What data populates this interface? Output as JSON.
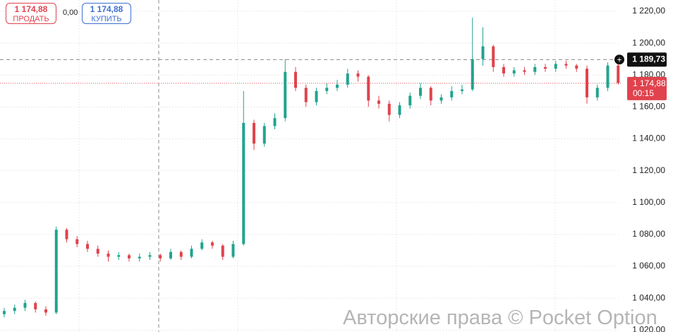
{
  "chart_data": {
    "type": "candlestick",
    "open": [
      1030,
      1032,
      1034,
      1037,
      1033,
      1031,
      1083,
      1077,
      1074,
      1071,
      1068,
      1066,
      1067,
      1065,
      1066,
      1067,
      1065,
      1069,
      1066,
      1071,
      1075,
      1073,
      1066,
      1074,
      1150,
      1137,
      1148,
      1153,
      1182,
      1172,
      1163,
      1170,
      1172,
      1174,
      1181,
      1179,
      1164,
      1162,
      1155,
      1161,
      1167,
      1172,
      1164,
      1166,
      1170,
      1171,
      1190,
      1198,
      1185,
      1181,
      1183,
      1182,
      1185,
      1184,
      1187,
      1186,
      1184,
      1166,
      1172,
      1186
    ],
    "high": [
      1034,
      1036,
      1039,
      1038,
      1035,
      1085,
      1084,
      1079,
      1076,
      1073,
      1070,
      1069,
      1068,
      1068,
      1069,
      1068,
      1071,
      1070,
      1073,
      1077,
      1076,
      1074,
      1076,
      1170,
      1152,
      1150,
      1156,
      1190,
      1185,
      1174,
      1172,
      1175,
      1177,
      1184,
      1183,
      1180,
      1167,
      1164,
      1163,
      1169,
      1175,
      1173,
      1168,
      1173,
      1174,
      1216,
      1210,
      1199,
      1187,
      1185,
      1185,
      1187,
      1187,
      1189,
      1189,
      1187,
      1186,
      1174,
      1188,
      1187
    ],
    "low": [
      1028,
      1030,
      1032,
      1031,
      1029,
      1030,
      1075,
      1072,
      1069,
      1066,
      1063,
      1064,
      1063,
      1063,
      1064,
      1063,
      1064,
      1064,
      1065,
      1070,
      1071,
      1064,
      1065,
      1073,
      1133,
      1135,
      1146,
      1151,
      1170,
      1160,
      1161,
      1168,
      1170,
      1172,
      1176,
      1160,
      1159,
      1151,
      1153,
      1159,
      1165,
      1161,
      1162,
      1164,
      1168,
      1170,
      1186,
      1182,
      1179,
      1179,
      1180,
      1180,
      1182,
      1182,
      1184,
      1182,
      1162,
      1164,
      1170,
      1174
    ],
    "close": [
      1032,
      1034,
      1037,
      1033,
      1031,
      1083,
      1077,
      1074,
      1071,
      1068,
      1066,
      1067,
      1065,
      1066,
      1067,
      1065,
      1069,
      1066,
      1071,
      1075,
      1073,
      1066,
      1074,
      1150,
      1137,
      1148,
      1153,
      1182,
      1172,
      1163,
      1170,
      1172,
      1174,
      1181,
      1179,
      1164,
      1162,
      1155,
      1161,
      1167,
      1172,
      1164,
      1166,
      1170,
      1171,
      1190,
      1198,
      1185,
      1181,
      1183,
      1182,
      1185,
      1184,
      1187,
      1186,
      1184,
      1166,
      1172,
      1186,
      1175
    ],
    "up_color": "#22a38e",
    "down_color": "#e0434d",
    "ylim": [
      1018.8,
      1227.1
    ],
    "yticks": [
      {
        "value": 1020,
        "label": "1 020,00"
      },
      {
        "value": 1040,
        "label": "1 040,00"
      },
      {
        "value": 1060,
        "label": "1 060,00"
      },
      {
        "value": 1080,
        "label": "1 080,00"
      },
      {
        "value": 1100,
        "label": "1 100,00"
      },
      {
        "value": 1120,
        "label": "1 120,00"
      },
      {
        "value": 1140,
        "label": "1 140,00"
      },
      {
        "value": 1160,
        "label": "1 160,00"
      },
      {
        "value": 1180,
        "label": "1 180,00"
      },
      {
        "value": 1200,
        "label": "1 200,00"
      },
      {
        "value": 1220,
        "label": "1 220,00"
      }
    ],
    "grid": true,
    "crosshair": {
      "value": 1189.73,
      "label": "1 189,73"
    },
    "current_price": {
      "value": 1174.88,
      "label": "1 174,88",
      "timer": "00:15"
    }
  },
  "trade_panel": {
    "sell": {
      "price": "1 174,88",
      "label": "ПРОДАТЬ"
    },
    "spread": "0,00",
    "buy": {
      "price": "1 174,88",
      "label": "КУПИТЬ"
    }
  },
  "watermark": "Авторские права © Pocket Option"
}
